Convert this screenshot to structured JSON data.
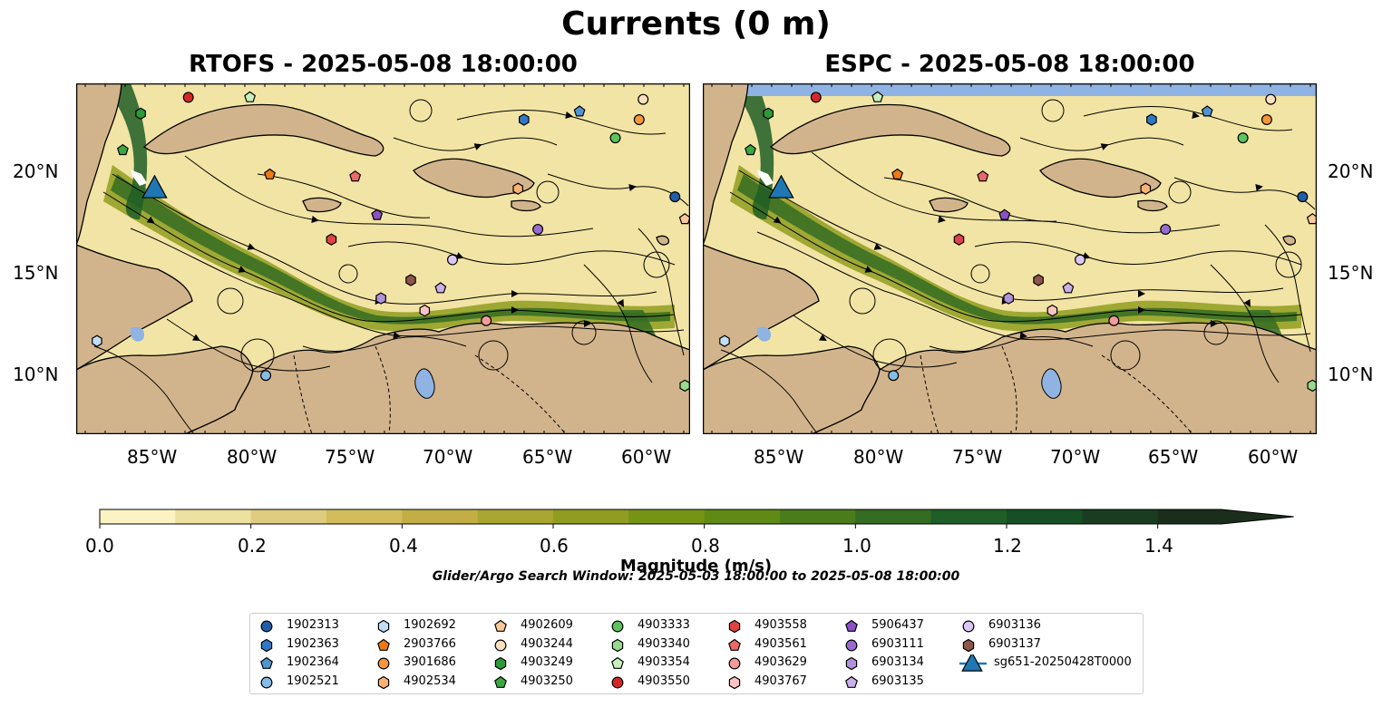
{
  "figure": {
    "title": "Currents (0 m)",
    "panels": [
      {
        "title": "RTOFS - 2025-05-08 18:00:00"
      },
      {
        "title": "ESPC - 2025-05-08 18:00:00"
      }
    ],
    "lat_ticks": [
      "20°N",
      "15°N",
      "10°N"
    ],
    "lon_ticks": [
      "85°W",
      "80°W",
      "75°W",
      "70°W",
      "65°W",
      "60°W"
    ],
    "colorbar": {
      "label": "Magnitude (m/s)",
      "ticks": [
        "0.0",
        "0.2",
        "0.4",
        "0.6",
        "0.8",
        "1.0",
        "1.2",
        "1.4"
      ],
      "range": [
        0,
        1.5
      ],
      "extend": "max",
      "colors": [
        "#fbf4c2",
        "#ede0a0",
        "#e0cc7e",
        "#d2bc5c",
        "#c2ae44",
        "#a9a631",
        "#8f9d20",
        "#769414",
        "#5f8a16",
        "#4a7c1c",
        "#346c22",
        "#1f5e26",
        "#145024",
        "#1a3d22",
        "#1b2e1c"
      ]
    },
    "search_window": "Glider/Argo Search Window: 2025-05-03 18:00:00 to 2025-05-08 18:00:00",
    "colors": {
      "land": "#d2b48c",
      "lake": "#8fb3e2",
      "ocean_low": "#f2e4a4",
      "streamline": "#000000"
    }
  },
  "legend": [
    {
      "label": "1902313",
      "marker": "circle",
      "color": "#1f5fa8"
    },
    {
      "label": "1902363",
      "marker": "hexagon",
      "color": "#2f78c4"
    },
    {
      "label": "1902364",
      "marker": "pentagon",
      "color": "#4f96d0"
    },
    {
      "label": "1902521",
      "marker": "circle",
      "color": "#86bde6"
    },
    {
      "label": "1902692",
      "marker": "hexagon",
      "color": "#c2def6"
    },
    {
      "label": "2903766",
      "marker": "pentagon",
      "color": "#f07a12"
    },
    {
      "label": "3901686",
      "marker": "circle",
      "color": "#f7963a"
    },
    {
      "label": "4902534",
      "marker": "hexagon",
      "color": "#fbb274"
    },
    {
      "label": "4902609",
      "marker": "pentagon",
      "color": "#fcc89a"
    },
    {
      "label": "4903244",
      "marker": "circle",
      "color": "#fde0c0"
    },
    {
      "label": "4903249",
      "marker": "hexagon",
      "color": "#2e9a35"
    },
    {
      "label": "4903250",
      "marker": "pentagon",
      "color": "#3aaa3e"
    },
    {
      "label": "4903333",
      "marker": "circle",
      "color": "#5cc45c"
    },
    {
      "label": "4903340",
      "marker": "hexagon",
      "color": "#96dc8c"
    },
    {
      "label": "4903354",
      "marker": "pentagon",
      "color": "#c6f0bc"
    },
    {
      "label": "4903550",
      "marker": "circle",
      "color": "#d62728"
    },
    {
      "label": "4903558",
      "marker": "hexagon",
      "color": "#de4444"
    },
    {
      "label": "4903561",
      "marker": "pentagon",
      "color": "#ea6a6a"
    },
    {
      "label": "4903629",
      "marker": "circle",
      "color": "#f39a9a"
    },
    {
      "label": "4903767",
      "marker": "hexagon",
      "color": "#fac4c4"
    },
    {
      "label": "5906437",
      "marker": "pentagon",
      "color": "#8a52c4"
    },
    {
      "label": "6903111",
      "marker": "circle",
      "color": "#9a6ad0"
    },
    {
      "label": "6903134",
      "marker": "hexagon",
      "color": "#b192dc"
    },
    {
      "label": "6903135",
      "marker": "pentagon",
      "color": "#c8b0ea"
    },
    {
      "label": "6903136",
      "marker": "circle",
      "color": "#dcc8f4"
    },
    {
      "label": "6903137",
      "marker": "hexagon",
      "color": "#8c564b"
    },
    {
      "label": "sg651-20250428T0000",
      "marker": "triangle",
      "color": "#1f77b4"
    }
  ]
}
